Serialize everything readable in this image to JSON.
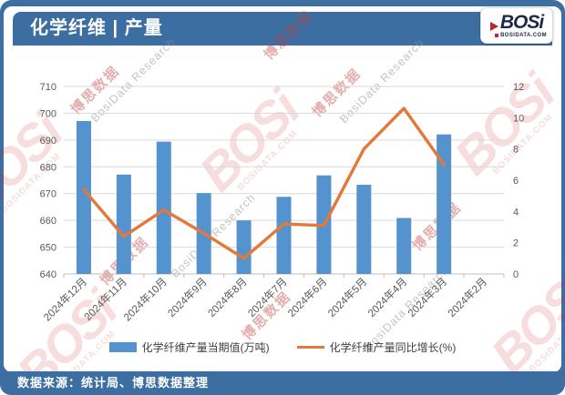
{
  "header": {
    "title": "化学纤维 | 产量"
  },
  "logo": {
    "text": "BOSi",
    "domain": "BOSIDATA.COM"
  },
  "footer": {
    "source": "数据来源：统计局、博思数据整理"
  },
  "watermarks": {
    "cn": "博思数据",
    "en": "BosiData Research",
    "logo_text": "BOSi",
    "logo_sub": "BOSIDATA.COM"
  },
  "chart_data": {
    "type": "combo-bar-line",
    "categories": [
      "2024年12月",
      "2024年11月",
      "2024年10月",
      "2024年9月",
      "2024年8月",
      "2024年7月",
      "2024年6月",
      "2024年5月",
      "2024年4月",
      "2024年3月",
      "2024年2月"
    ],
    "series": [
      {
        "name": "化学纤维产量当期值(万吨)",
        "type": "bar",
        "axis": "left",
        "color": "#5593CE",
        "values": [
          697.1,
          677.1,
          689.4,
          670.2,
          660.0,
          668.8,
          676.8,
          673.3,
          660.9,
          692.1,
          null
        ]
      },
      {
        "name": "化学纤维产量同比增长(%)",
        "type": "line",
        "axis": "right",
        "color": "#E2793A",
        "values": [
          5.4,
          2.4,
          4.1,
          2.6,
          1.0,
          3.2,
          3.1,
          8.0,
          10.6,
          7.0,
          null
        ]
      }
    ],
    "left_axis": {
      "min": 640,
      "max": 710,
      "step": 10,
      "ticks": [
        640,
        650,
        660,
        670,
        680,
        690,
        700,
        710
      ]
    },
    "right_axis": {
      "min": 0,
      "max": 12,
      "step": 2,
      "ticks": [
        0,
        2,
        4,
        6,
        8,
        10,
        12
      ]
    },
    "grid": true,
    "legend_position": "bottom"
  }
}
